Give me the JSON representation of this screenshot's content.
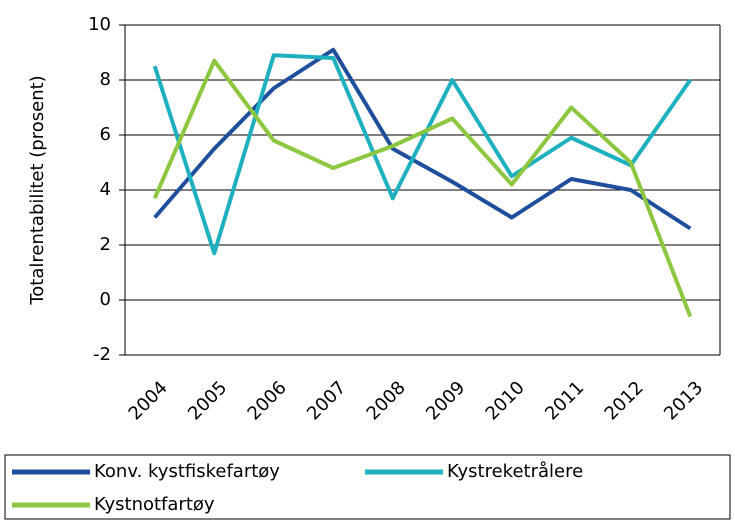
{
  "chart_data": {
    "type": "line",
    "y_label": "Totalrentabilitet (prosent)",
    "categories": [
      "2004",
      "2005",
      "2006",
      "2007",
      "2008",
      "2009",
      "2010",
      "2011",
      "2012",
      "2013"
    ],
    "series": [
      {
        "name": "Konv. kystfiskefartøy",
        "color": "#1f4e9c",
        "values": [
          3.0,
          5.5,
          7.7,
          9.1,
          5.5,
          4.3,
          3.0,
          4.4,
          4.0,
          2.6
        ]
      },
      {
        "name": "Kystreketrålere",
        "color": "#1fb0c0",
        "values": [
          8.5,
          1.7,
          8.9,
          8.8,
          3.7,
          8.0,
          4.5,
          5.9,
          4.9,
          8.0
        ]
      },
      {
        "name": "Kystnotfartøy",
        "color": "#8dc63f",
        "values": [
          3.7,
          8.7,
          5.8,
          4.8,
          5.6,
          6.6,
          4.2,
          7.0,
          5.0,
          -0.6
        ]
      }
    ],
    "ylim": [
      -2,
      10
    ],
    "yticks": [
      -2,
      0,
      2,
      4,
      6,
      8,
      10
    ],
    "grid": true
  }
}
